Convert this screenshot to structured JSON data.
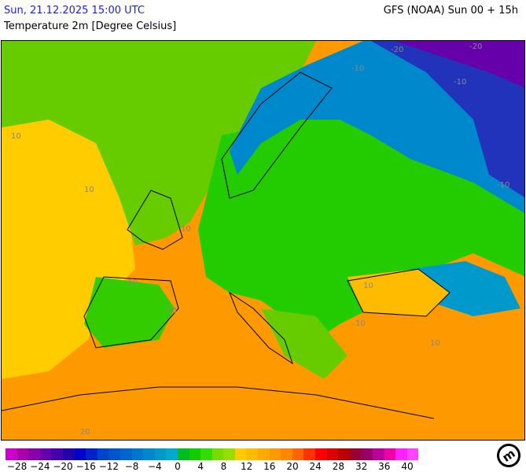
{
  "header": {
    "datetime": "Sun, 21.12.2025 15:00 UTC",
    "model": "GFS (NOAA) Sun 00 + 15h",
    "parameter": "Temperature 2m [Degree Celsius]"
  },
  "legend": {
    "colors": [
      "#cc00cc",
      "#aa00aa",
      "#8800aa",
      "#6600aa",
      "#4400aa",
      "#2200aa",
      "#0000cc",
      "#0022cc",
      "#0044cc",
      "#0055cc",
      "#0066cc",
      "#0077cc",
      "#0088cc",
      "#0099cc",
      "#00aacc",
      "#00bb22",
      "#11cc00",
      "#33dd00",
      "#77dd00",
      "#99dd00",
      "#ffcc00",
      "#ffbb00",
      "#ffaa00",
      "#ff9900",
      "#ff8800",
      "#ff6600",
      "#ff3300",
      "#ff0000",
      "#dd0000",
      "#bb0000",
      "#990033",
      "#990066",
      "#bb0099",
      "#ee00aa",
      "#ff22ff",
      "#ff44ff"
    ],
    "labels": [
      "−28",
      "−24",
      "−20",
      "−16",
      "−12",
      "−8",
      "−4",
      "0",
      "4",
      "8",
      "12",
      "16",
      "20",
      "24",
      "28",
      "32",
      "36",
      "40"
    ]
  },
  "isolines": [
    "-20",
    "-20",
    "-10",
    "-10",
    "-10",
    "10",
    "10",
    "10",
    "10",
    "10",
    "10",
    "10",
    "10",
    "20"
  ],
  "logo": "mi"
}
